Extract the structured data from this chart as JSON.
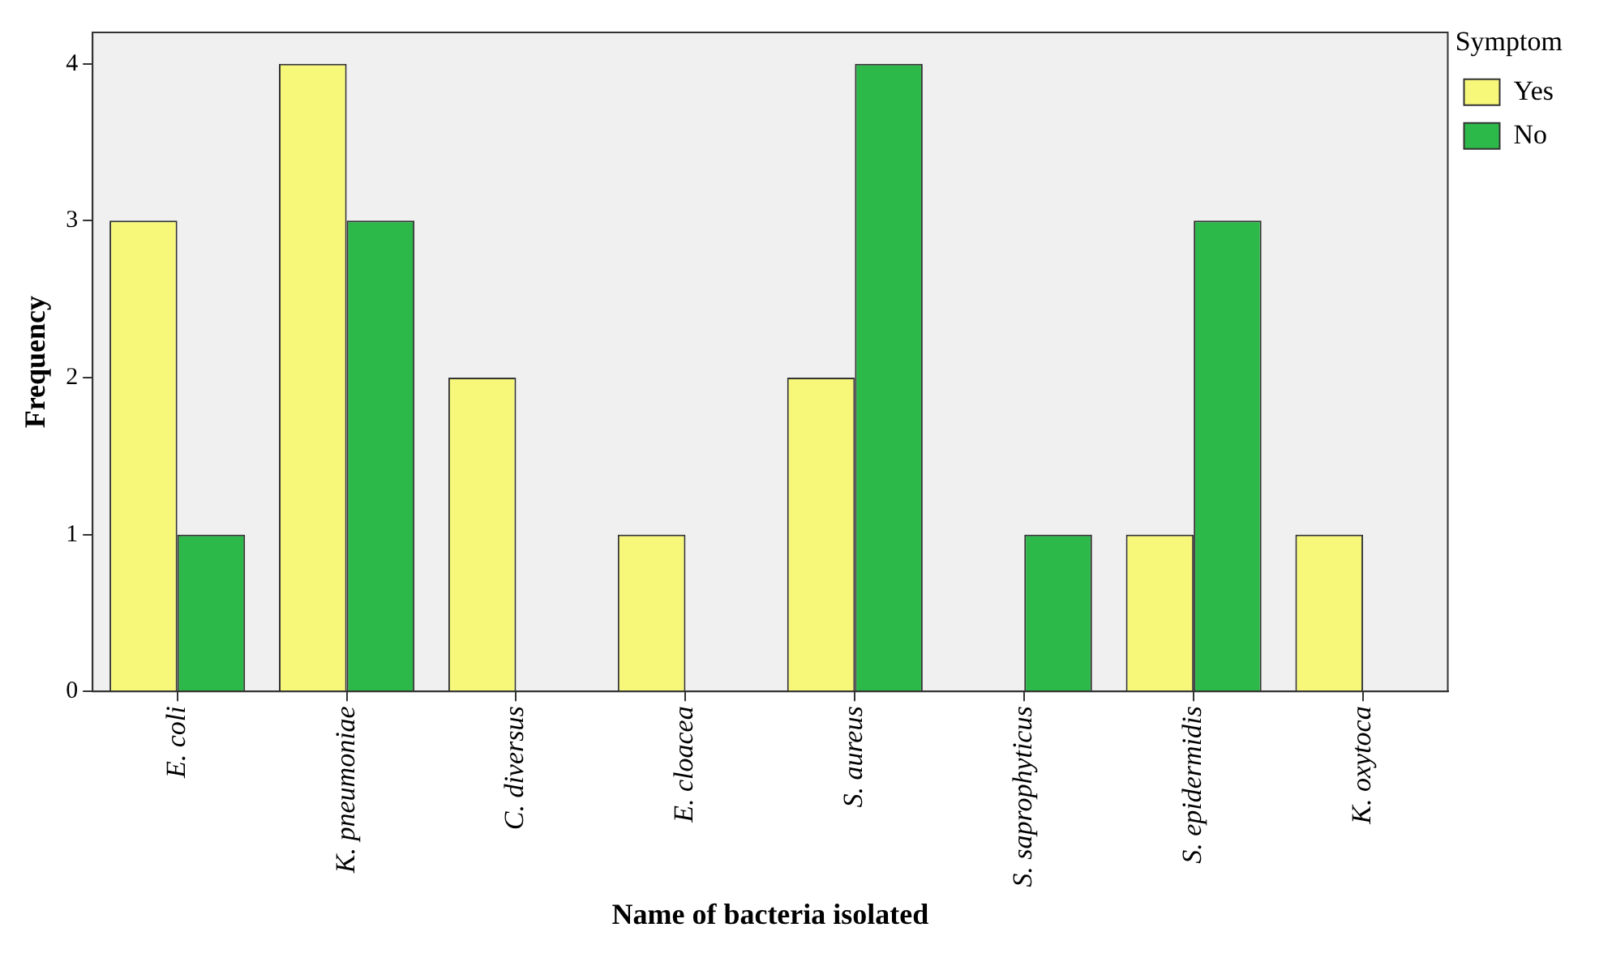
{
  "chart_data": {
    "type": "bar",
    "xlabel": "Name of bacteria isolated",
    "ylabel": "Frequency",
    "legend_title": "Symptom",
    "legend": "top right",
    "categories": [
      "E. coli",
      "K. pneumoniae",
      "C. diversus",
      "E. cloacea",
      "S. aureus",
      "S. saprophyticus",
      "S. epidermidis",
      "K. oxytoca"
    ],
    "series": [
      {
        "name": "Yes",
        "color": "#f7f77a",
        "values": [
          3,
          4,
          2,
          1,
          2,
          0,
          1,
          1
        ]
      },
      {
        "name": "No",
        "color": "#2db84a",
        "values": [
          1,
          3,
          0,
          0,
          4,
          1,
          3,
          0
        ]
      }
    ],
    "ylim": [
      0,
      4.2
    ],
    "yticks": [
      0,
      1,
      2,
      3,
      4
    ]
  }
}
